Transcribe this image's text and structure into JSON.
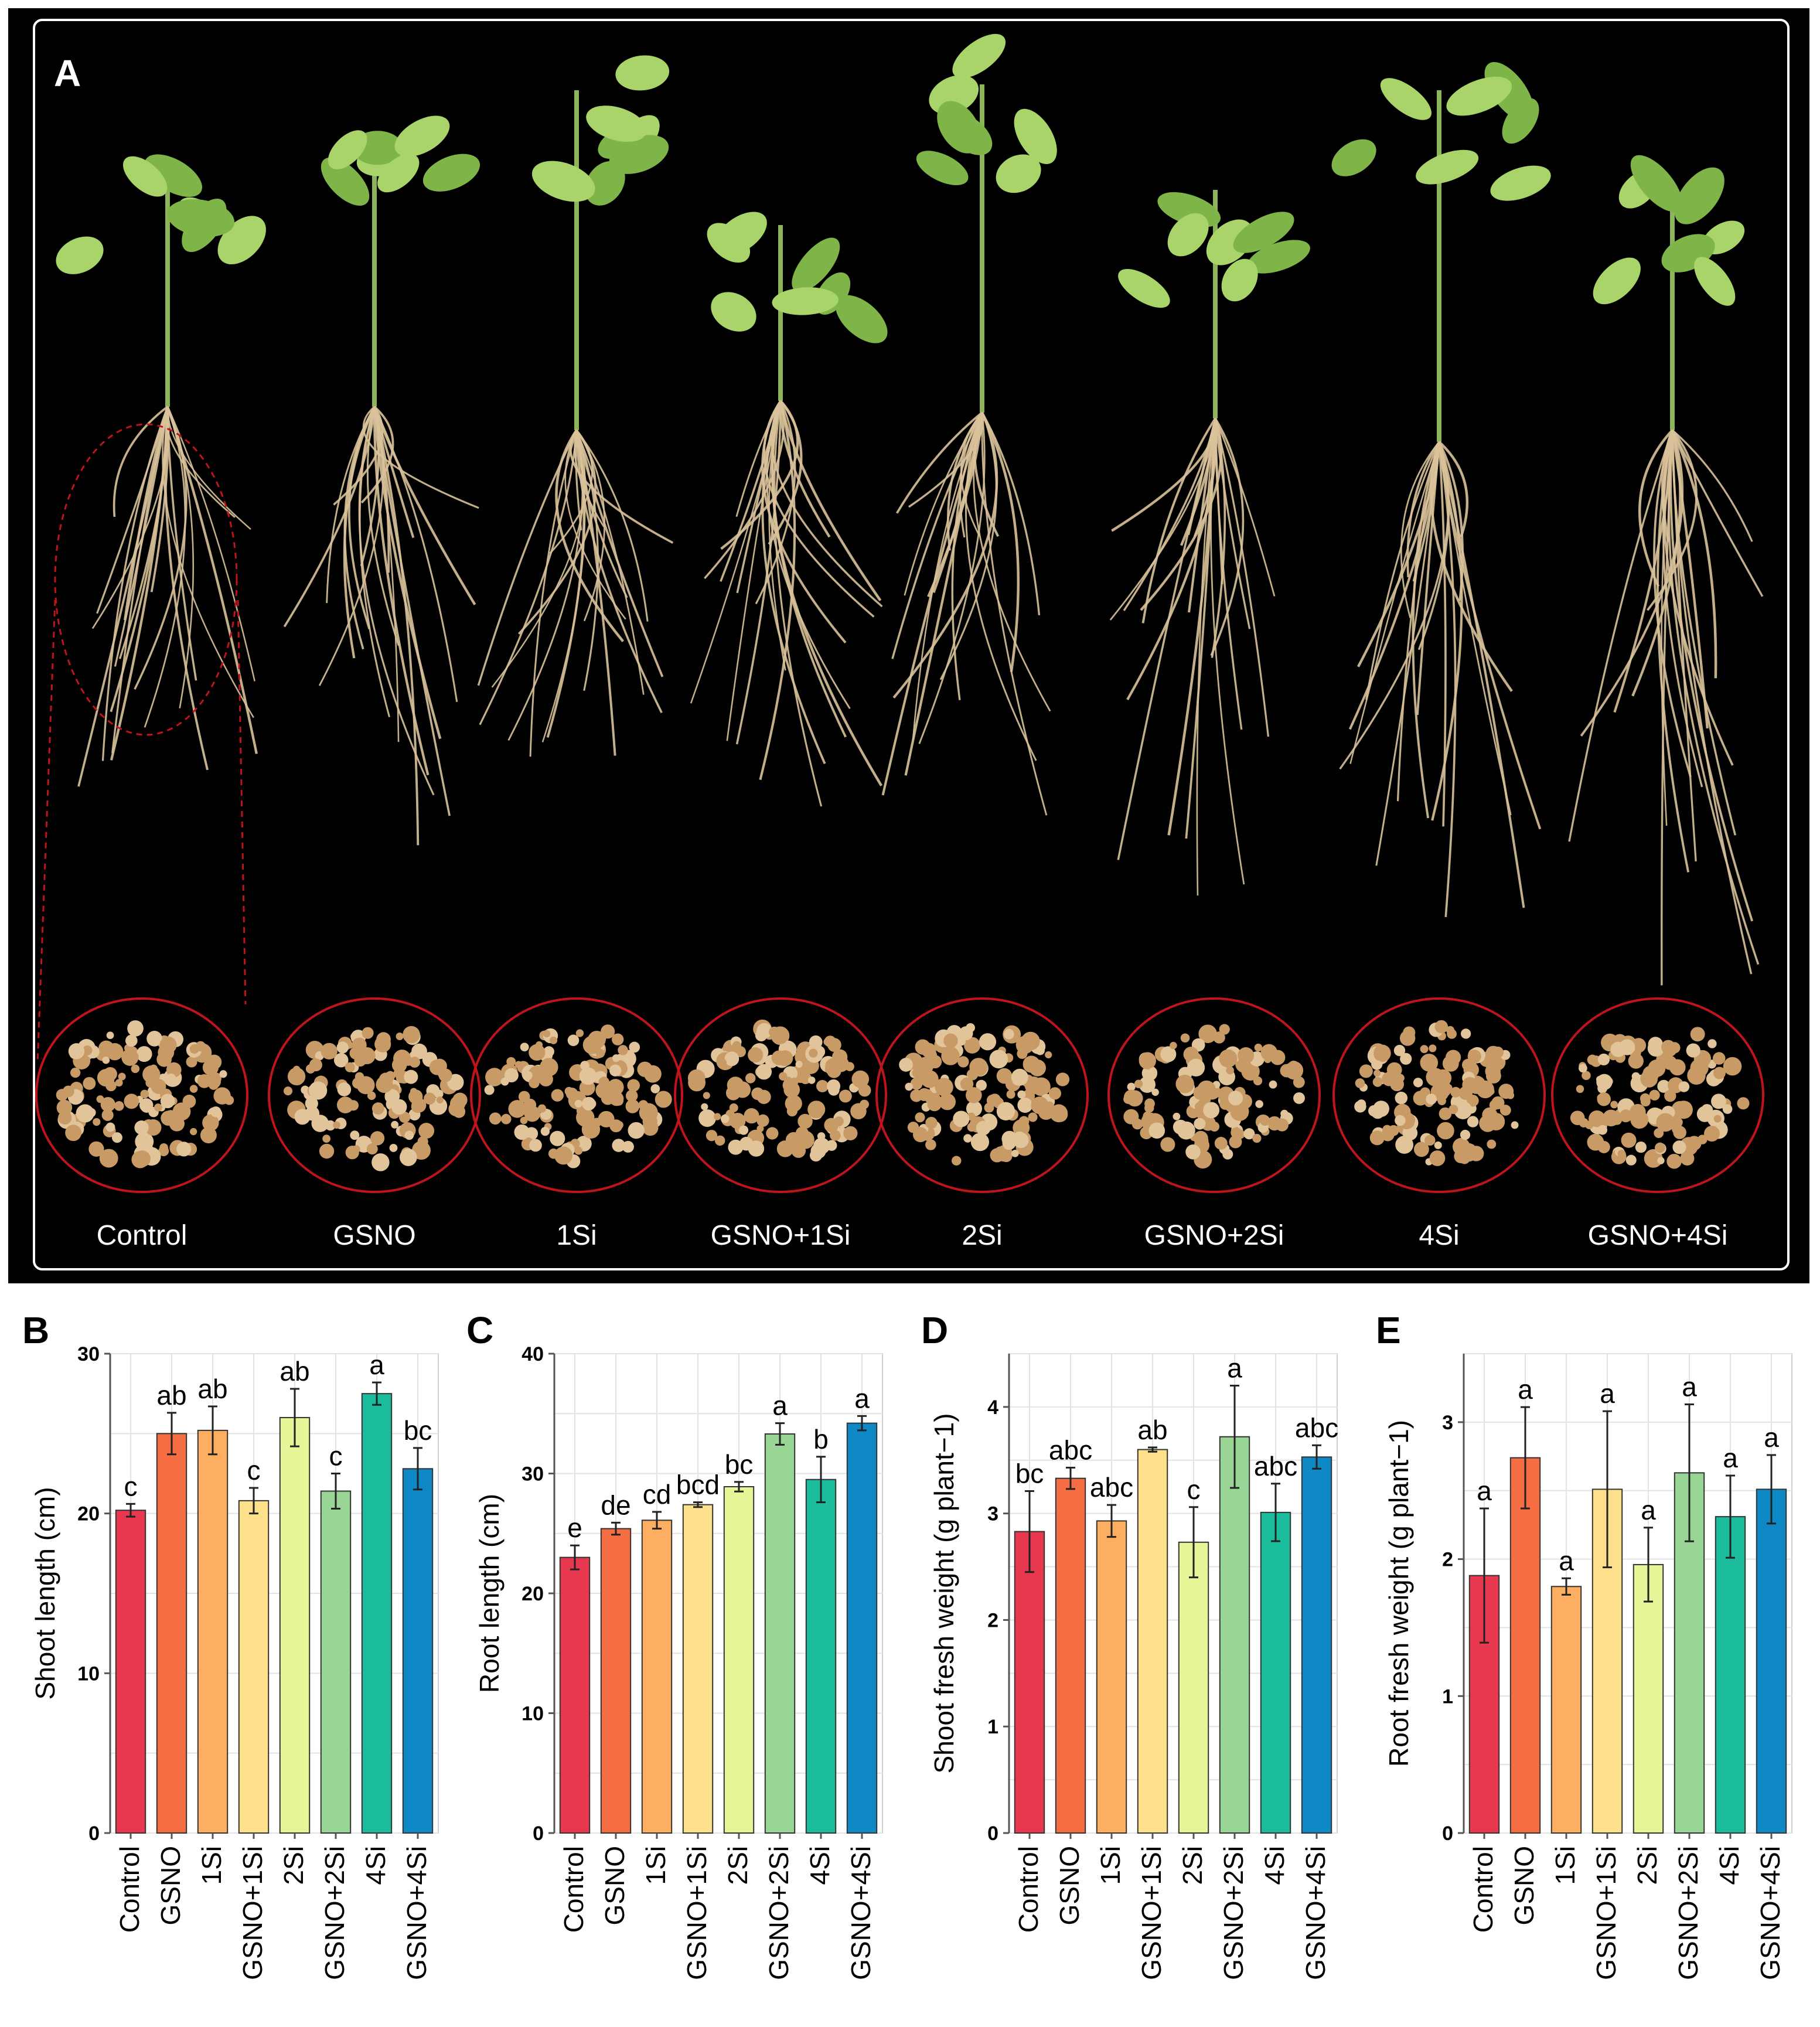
{
  "panel_a": {
    "letter": "A",
    "treatments": [
      "Control",
      "GSNO",
      "1Si",
      "GSNO+1Si",
      "2Si",
      "GSNO+2Si",
      "4Si",
      "GSNO+4Si"
    ]
  },
  "colors": [
    "#e8384f",
    "#f46d43",
    "#fdae61",
    "#fee08b",
    "#e6f598",
    "#99d594",
    "#1bbc9b",
    "#0f88c6"
  ],
  "chart_data": [
    {
      "panel": "B",
      "type": "bar",
      "categories": [
        "Control",
        "GSNO",
        "1Si",
        "GSNO+1Si",
        "2Si",
        "GSNO+2Si",
        "4Si",
        "GSNO+4Si"
      ],
      "values": [
        20.2,
        25.0,
        25.2,
        20.8,
        26.0,
        21.4,
        27.5,
        22.8
      ],
      "errors": [
        0.4,
        1.3,
        1.5,
        0.8,
        1.8,
        1.1,
        0.7,
        1.3
      ],
      "letters": [
        "c",
        "ab",
        "ab",
        "c",
        "ab",
        "c",
        "a",
        "bc"
      ],
      "ylabel": "Shoot length (cm)",
      "ylim": [
        0,
        30
      ],
      "yticks": [
        0,
        10,
        20,
        30
      ],
      "grid": true
    },
    {
      "panel": "C",
      "type": "bar",
      "categories": [
        "Control",
        "GSNO",
        "1Si",
        "GSNO+1Si",
        "2Si",
        "GSNO+2Si",
        "4Si",
        "GSNO+4Si"
      ],
      "values": [
        23.0,
        25.4,
        26.1,
        27.4,
        28.9,
        33.3,
        29.5,
        34.2
      ],
      "errors": [
        1.0,
        0.5,
        0.7,
        0.2,
        0.4,
        0.9,
        1.9,
        0.6
      ],
      "letters": [
        "e",
        "de",
        "cd",
        "bcd",
        "bc",
        "a",
        "b",
        "a"
      ],
      "ylabel": "Root length (cm)",
      "ylim": [
        0,
        40
      ],
      "yticks": [
        0,
        10,
        20,
        30,
        40
      ],
      "grid": true
    },
    {
      "panel": "D",
      "type": "bar",
      "categories": [
        "Control",
        "GSNO",
        "1Si",
        "GSNO+1Si",
        "2Si",
        "GSNO+2Si",
        "4Si",
        "GSNO+4Si"
      ],
      "values": [
        2.83,
        3.33,
        2.93,
        3.6,
        2.73,
        3.72,
        3.01,
        3.53
      ],
      "errors": [
        0.38,
        0.1,
        0.15,
        0.02,
        0.33,
        0.48,
        0.27,
        0.11
      ],
      "letters": [
        "bc",
        "abc",
        "abc",
        "ab",
        "c",
        "a",
        "abc",
        "abc"
      ],
      "ylabel": "Shoot fresh weight (g plant−1)",
      "ylim": [
        0,
        4.5
      ],
      "yticks": [
        0,
        1,
        2,
        3,
        4
      ],
      "grid": true
    },
    {
      "panel": "E",
      "type": "bar",
      "categories": [
        "Control",
        "GSNO",
        "1Si",
        "GSNO+1Si",
        "2Si",
        "GSNO+2Si",
        "4Si",
        "GSNO+4Si"
      ],
      "values": [
        1.88,
        2.74,
        1.8,
        2.51,
        1.96,
        2.63,
        2.31,
        2.51
      ],
      "errors": [
        0.49,
        0.37,
        0.06,
        0.57,
        0.27,
        0.5,
        0.3,
        0.25
      ],
      "letters": [
        "a",
        "a",
        "a",
        "a",
        "a",
        "a",
        "a",
        "a"
      ],
      "ylabel": "Root fresh weight (g plant−1)",
      "ylim": [
        0,
        3.5
      ],
      "yticks": [
        0,
        1,
        2,
        3
      ],
      "grid": true
    }
  ]
}
